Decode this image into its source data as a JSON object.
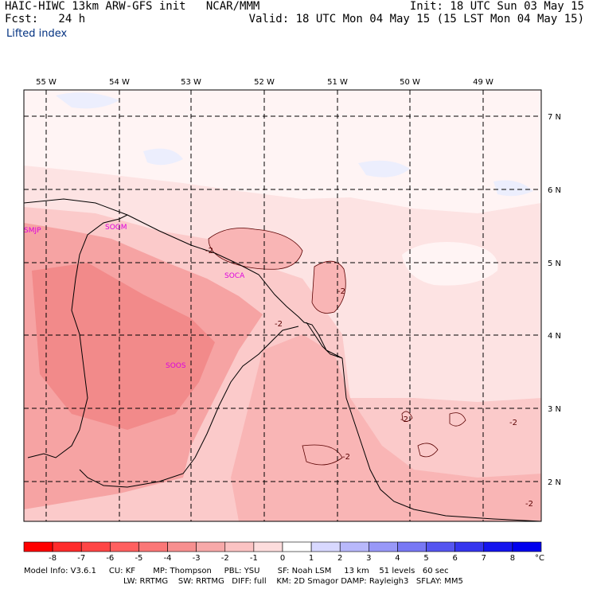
{
  "header": {
    "model": "HAIC-HIWC 13km ARW-GFS init",
    "center": "NCAR/MMM",
    "init": "Init: 18 UTC Sun 03 May 15",
    "fcst": "Fcst:   24 h",
    "valid": "Valid: 18 UTC Mon 04 May 15 (15 LST Mon 04 May 15)",
    "field": "Lifted index"
  },
  "map": {
    "lon_labels": [
      "55 W",
      "54 W",
      "53 W",
      "52 W",
      "51 W",
      "50 W",
      "49 W"
    ],
    "lat_labels": [
      "7 N",
      "6 N",
      "5 N",
      "4 N",
      "3 N",
      "2 N"
    ],
    "stations": [
      "SMJP",
      "SOGM",
      "SOCA",
      "SOOS"
    ],
    "contour_labels": [
      "-2",
      "-2",
      "-2",
      "-2",
      "-2",
      "-2",
      "-2"
    ],
    "colors": {
      "li_m5": "#f28a8a",
      "li_m4": "#f6a3a3",
      "li_m3": "#f9b5b5",
      "li_m2": "#fbcaca",
      "li_m1": "#fde3e3",
      "li_0": "#fff4f4",
      "li_p1": "#eceefd"
    }
  },
  "colorbar": {
    "ticks": [
      "-8",
      "-7",
      "-6",
      "-5",
      "-4",
      "-3",
      "-2",
      "-1",
      "0",
      "1",
      "2",
      "3",
      "4",
      "5",
      "6",
      "7",
      "8"
    ],
    "unit": "°C",
    "colors": [
      "#ff0000",
      "#ff2b2b",
      "#ff4545",
      "#ff5f5f",
      "#fb7777",
      "#f78f8f",
      "#f7a9a9",
      "#fbc3c3",
      "#fddddd",
      "#ffffff",
      "#d8d8ff",
      "#b8b8fb",
      "#9898f8",
      "#7878f4",
      "#5555f0",
      "#3535ee",
      "#1515ee",
      "#0000ee"
    ]
  },
  "footer": {
    "line1": "Model Info: V3.6.1     CU: KF       MP: Thompson     PBL: YSU       SF: Noah LSM     13 km    51 levels   60 sec",
    "line2": "LW: RRTMG    SW: RRTMG   DIFF: full    KM: 2D Smagor DAMP: Rayleigh3   SFLAY: MM5"
  }
}
